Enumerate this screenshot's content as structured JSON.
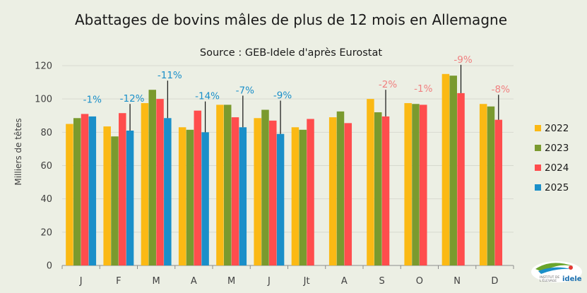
{
  "chart_data": {
    "type": "bar",
    "title": "Abattages de bovins mâles de plus de 12 mois en Allemagne",
    "subtitle": "Source : GEB-Idele d'après Eurostat",
    "ylabel": "Milliers de têtes",
    "xlabel": "",
    "ylim": [
      0,
      120
    ],
    "yticks": [
      0,
      20,
      40,
      60,
      80,
      100,
      120
    ],
    "grid": true,
    "legend_position": "right",
    "categories": [
      "J",
      "F",
      "M",
      "A",
      "M",
      "J",
      "Jt",
      "A",
      "S",
      "O",
      "N",
      "D"
    ],
    "series": [
      {
        "name": "2022",
        "color": "#fbb914",
        "values": [
          85,
          83.5,
          97.5,
          83,
          96.5,
          88.5,
          83,
          89,
          100,
          97.5,
          115,
          97
        ]
      },
      {
        "name": "2023",
        "color": "#7a9a2e",
        "values": [
          88.5,
          77.5,
          105.5,
          81.5,
          96.5,
          93.5,
          81.5,
          92.5,
          92,
          97,
          114,
          95.5
        ]
      },
      {
        "name": "2024",
        "color": "#ff4d4d",
        "values": [
          91,
          91.5,
          100,
          93,
          89,
          87,
          88,
          85.5,
          89.5,
          96.5,
          103.5,
          87.5
        ]
      },
      {
        "name": "2025",
        "color": "#1a8fc9",
        "values": [
          89.5,
          81,
          88.5,
          80,
          83,
          79,
          null,
          null,
          null,
          null,
          null,
          null
        ]
      }
    ],
    "annotations": [
      {
        "category_index": 0,
        "text": "-1%",
        "color": "#1a8fc9",
        "leader": false
      },
      {
        "category_index": 1,
        "text": "-12%",
        "color": "#1a8fc9",
        "leader": true
      },
      {
        "category_index": 2,
        "text": "-11%",
        "color": "#1a8fc9",
        "leader": true
      },
      {
        "category_index": 3,
        "text": "-14%",
        "color": "#1a8fc9",
        "leader": true
      },
      {
        "category_index": 4,
        "text": "-7%",
        "color": "#1a8fc9",
        "leader": true
      },
      {
        "category_index": 5,
        "text": "-9%",
        "color": "#1a8fc9",
        "leader": true
      },
      {
        "category_index": 8,
        "text": "-2%",
        "color": "#f07f7f",
        "leader": true
      },
      {
        "category_index": 9,
        "text": "-1%",
        "color": "#f07f7f",
        "leader": false
      },
      {
        "category_index": 10,
        "text": "-9%",
        "color": "#f07f7f",
        "leader": true
      },
      {
        "category_index": 11,
        "text": "-8%",
        "color": "#f07f7f",
        "leader": true
      }
    ]
  },
  "logo": {
    "name": "idele-logo",
    "line1": "INSTITUT DE",
    "line2": "L'ÉLEVAGE",
    "brand": "idele"
  }
}
